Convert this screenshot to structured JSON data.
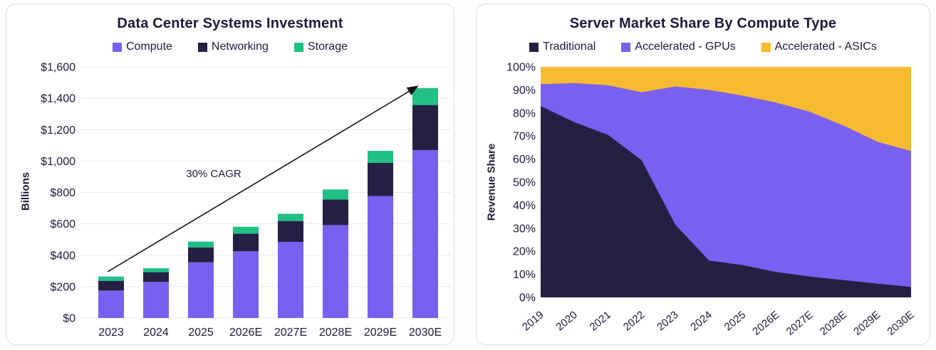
{
  "chart_data": [
    {
      "type": "bar",
      "stacked": true,
      "title": "Data Center Systems Investment",
      "ylabel": "Billions",
      "xlabel": "",
      "annotation": "30% CAGR",
      "categories": [
        "2023",
        "2024",
        "2025",
        "2026E",
        "2027E",
        "2028E",
        "2029E",
        "2030E"
      ],
      "series": [
        {
          "name": "Compute",
          "color": "#7a60f0",
          "values": [
            175,
            230,
            355,
            425,
            485,
            592,
            777,
            1070
          ]
        },
        {
          "name": "Networking",
          "color": "#232044",
          "values": [
            62,
            62,
            95,
            112,
            133,
            163,
            212,
            287
          ]
        },
        {
          "name": "Storage",
          "color": "#21c185",
          "values": [
            27,
            25,
            37,
            44,
            46,
            64,
            76,
            108
          ]
        }
      ],
      "totals": [
        264,
        317,
        487,
        581,
        664,
        819,
        1065,
        1465
      ],
      "ylim": [
        0,
        1600
      ],
      "y_tick_step": 200,
      "y_tick_format": "$#,##0",
      "grid": true,
      "legend_position": "top"
    },
    {
      "type": "area",
      "stacked": true,
      "title": "Server Market Share By Compute Type",
      "ylabel": "Revenue Share",
      "xlabel": "",
      "categories": [
        "2019",
        "2020",
        "2021",
        "2022",
        "2023",
        "2024",
        "2025",
        "2026E",
        "2027E",
        "2028E",
        "2029E",
        "2030E"
      ],
      "series": [
        {
          "name": "Traditional",
          "color": "#232044",
          "values": [
            83,
            76,
            70.5,
            59.5,
            31.5,
            16,
            14,
            11,
            9,
            7.5,
            6,
            4.5
          ]
        },
        {
          "name": "Accelerated - GPUs",
          "color": "#7a60f0",
          "values": [
            9.5,
            17,
            21.5,
            29.5,
            60,
            74,
            73.5,
            73.5,
            71.5,
            67,
            61.5,
            59
          ]
        },
        {
          "name": "Accelerated - ASICs",
          "color": "#f7bb31",
          "values": [
            7.5,
            7,
            8,
            11,
            8.5,
            10,
            12.5,
            15.5,
            19.5,
            25.5,
            32.5,
            36.5
          ]
        }
      ],
      "ylim": [
        0,
        100
      ],
      "y_tick_step": 10,
      "y_tick_format": "0%",
      "grid": false,
      "legend_position": "top"
    }
  ],
  "style": {
    "text_color": "#1c1a3c",
    "grid_color": "#e8e8ee",
    "arrow_color": "#141414",
    "card_border_color": "#dcdce6",
    "background": "#ffffff"
  }
}
